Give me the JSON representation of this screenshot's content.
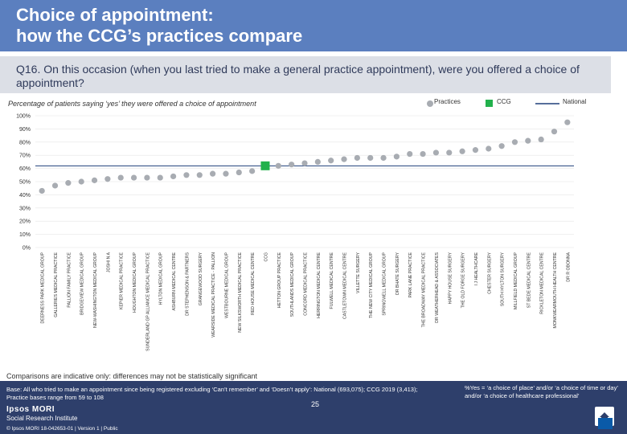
{
  "title": "Choice of appointment:\nhow the CCG’s practices compare",
  "question": "Q16. On this occasion (when you last tried to make a general practice appointment), were you offered a choice of appointment?",
  "subtitle": "Percentage of patients saying ‘yes’ they were offered a choice of appointment",
  "legend": {
    "practices": "Practices",
    "ccg": "CCG",
    "national": "National"
  },
  "colors": {
    "practices": "#a8acb2",
    "ccg": "#22b14c",
    "national": "#1f3f7a",
    "header": "#5b7fbf",
    "footer": "#2e3f6b"
  },
  "caveat": "Comparisons are indicative only: differences may not be statistically significant",
  "footer": {
    "base": "Base: All who tried to make an appointment since being registered excluding ‘Can’t remember’ and ‘Doesn’t apply’: National (693,075); CCG 2019 (3,413); Practice bases range from 59 to 108",
    "yes_definition": "%Yes = ‘a choice of place’ and/or ‘a choice of time or day’ and/or ‘a choice of healthcare professional’",
    "brand_name": "Ipsos MORI",
    "brand_sub": "Social Research Institute",
    "copyright": "© Ipsos MORI     18-042653-01 | Version 1 | Public",
    "page_number": "25"
  },
  "chart_data": {
    "type": "scatter",
    "title": "Percentage of patients saying ‘yes’ they were offered a choice of appointment",
    "ylim": [
      0,
      100
    ],
    "yticks": [
      "0%",
      "10%",
      "20%",
      "30%",
      "40%",
      "50%",
      "60%",
      "70%",
      "80%",
      "90%",
      "100%"
    ],
    "national_value": 62,
    "categories": [
      "DEERNESS PARK MEDICAL GROUP",
      "GALLERIES MEDICAL PRACTICE",
      "PALLION FAMILY PRACTICE",
      "BRIDGEVIEW MEDICAL GROUP",
      "NEW-WASHINGTON MEDICAL GROUP",
      "JOSHI N A",
      "KEPIER MEDICAL PRACTICE",
      "HOUGHTON MEDICAL GROUP",
      "SUNDERLAND GP ALLIANCE MEDICAL PRACTICE",
      "HYLTON MEDICAL GROUP",
      "ASHBURN MEDICAL CENTRE",
      "DR STEPHENSON & PARTNERS",
      "GRANGEWOOD SURGERY",
      "WEARSIDE MEDICAL PRACTICE - PALLION",
      "WESTBOURNE MEDICAL GROUP",
      "NEW SILKSWORTH MEDICAL PRACTICE",
      "RED HOUSE MEDICAL CENTRE",
      "CCG",
      "HETTON GROUP PRACTICE",
      "SOUTHLANDS MEDICAL GROUP",
      "CONCORD MEDICAL PRACTICE",
      "HERRINGTON MEDICAL CENTRE",
      "FULWELL MEDICAL CENTRE",
      "CASTLETOWN MEDICAL CENTRE",
      "VILLETTE SURGERY",
      "THE NEW CITY MEDICAL GROUP",
      "SPRINGWELL MEDICAL GROUP",
      "DR BHATE SURGERY",
      "PARK LANE PRACTICE",
      "THE BROADWAY MEDICAL PRACTICE",
      "DR WEATHERHEAD & ASSOCIATES",
      "HAPPY HOUSE SURGERY",
      "THE OLD FORGE SURGERY",
      "I J HEALTHCARE",
      "CHESTER SURGERY",
      "SOUTH HYLTON SURGERY",
      "MILLFIELD MEDICAL GROUP",
      "ST BEDE MEDICAL CENTRE",
      "RICKLETON MEDICAL CENTRE",
      "MONKWEARMOUTH HEALTH CENTRE",
      "DR R OBONNA"
    ],
    "values": [
      43,
      47,
      49,
      50,
      51,
      52,
      53,
      53,
      53,
      53,
      54,
      55,
      55,
      56,
      56,
      57,
      58,
      62,
      62,
      63,
      64,
      65,
      66,
      67,
      68,
      68,
      68,
      69,
      71,
      71,
      72,
      72,
      73,
      74,
      75,
      77,
      80,
      81,
      82,
      88,
      95
    ],
    "ccg_index": 17
  }
}
